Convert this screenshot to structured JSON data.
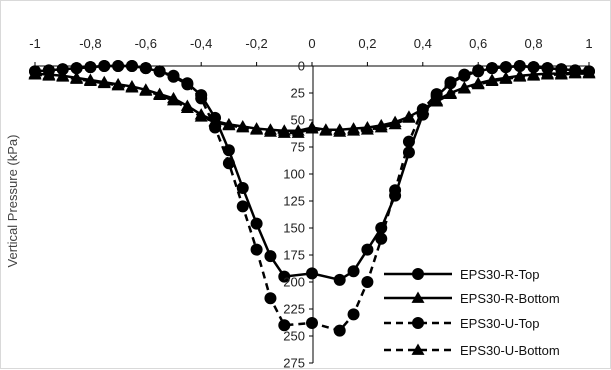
{
  "chart_data": {
    "type": "line",
    "title": "",
    "xlabel": "",
    "ylabel": "Vertical Pressure (kPa)",
    "xlim": [
      -1,
      1
    ],
    "ylim": [
      0,
      275
    ],
    "y_reversed": true,
    "x_axis_position": "top",
    "grid": false,
    "legend_position": "bottom-right",
    "x_ticks": [
      "-1",
      "-0,8",
      "-0,6",
      "-0,4",
      "-0,2",
      "0",
      "0,2",
      "0,4",
      "0,6",
      "0,8",
      "1"
    ],
    "y_ticks": [
      "0",
      "25",
      "50",
      "75",
      "100",
      "125",
      "150",
      "175",
      "200",
      "225",
      "250",
      "275"
    ],
    "series": [
      {
        "name": "EPS30-R-Top",
        "marker": "circle",
        "dash": false,
        "color": "#000000",
        "x": [
          -1,
          -0.95,
          -0.9,
          -0.85,
          -0.8,
          -0.75,
          -0.7,
          -0.65,
          -0.6,
          -0.55,
          -0.5,
          -0.45,
          -0.4,
          -0.35,
          -0.3,
          -0.25,
          -0.2,
          -0.15,
          -0.1,
          0,
          0.1,
          0.15,
          0.2,
          0.25,
          0.3,
          0.35,
          0.4,
          0.45,
          0.5,
          0.55,
          0.6,
          0.65,
          0.7,
          0.75,
          0.8,
          0.85,
          0.9,
          0.95,
          1
        ],
        "y": [
          5,
          4,
          3,
          2,
          1,
          0,
          0,
          0,
          2,
          5,
          9,
          16,
          27,
          48,
          78,
          113,
          146,
          176,
          195,
          192,
          198,
          190,
          170,
          150,
          120,
          80,
          45,
          28,
          16,
          9,
          5,
          2,
          1,
          0,
          1,
          2,
          3,
          4,
          5
        ]
      },
      {
        "name": "EPS30-R-Bottom",
        "marker": "triangle",
        "dash": false,
        "color": "#000000",
        "x": [
          -1,
          -0.95,
          -0.9,
          -0.85,
          -0.8,
          -0.75,
          -0.7,
          -0.65,
          -0.6,
          -0.55,
          -0.5,
          -0.45,
          -0.4,
          -0.35,
          -0.3,
          -0.25,
          -0.2,
          -0.15,
          -0.1,
          -0.05,
          0,
          0.05,
          0.1,
          0.15,
          0.2,
          0.25,
          0.3,
          0.35,
          0.4,
          0.45,
          0.5,
          0.55,
          0.6,
          0.65,
          0.7,
          0.75,
          0.8,
          0.85,
          0.9,
          0.95,
          1
        ],
        "y": [
          7,
          8,
          9,
          11,
          13,
          15,
          17,
          19,
          22,
          26,
          30,
          37,
          45,
          51,
          54,
          56,
          58,
          59,
          60,
          60,
          57,
          59,
          59,
          58,
          57,
          55,
          52,
          47,
          40,
          32,
          25,
          20,
          16,
          13,
          11,
          9,
          8,
          7,
          7,
          6,
          6
        ]
      },
      {
        "name": "EPS30-U-Top",
        "marker": "circle",
        "dash": true,
        "color": "#000000",
        "x": [
          -1,
          -0.95,
          -0.9,
          -0.85,
          -0.8,
          -0.75,
          -0.7,
          -0.65,
          -0.6,
          -0.55,
          -0.5,
          -0.45,
          -0.4,
          -0.35,
          -0.3,
          -0.25,
          -0.2,
          -0.15,
          -0.1,
          0,
          0.1,
          0.15,
          0.2,
          0.25,
          0.3,
          0.35,
          0.4,
          0.45,
          0.5,
          0.55,
          0.6,
          0.65,
          0.7,
          0.75,
          0.8,
          0.85,
          0.9,
          0.95,
          1
        ],
        "y": [
          5,
          4,
          3,
          2,
          1,
          0,
          0,
          0,
          2,
          5,
          10,
          17,
          30,
          57,
          90,
          130,
          170,
          215,
          240,
          238,
          245,
          230,
          200,
          160,
          115,
          70,
          40,
          26,
          15,
          8,
          4,
          2,
          1,
          0,
          1,
          2,
          3,
          4,
          5
        ]
      },
      {
        "name": "EPS30-U-Bottom",
        "marker": "triangle",
        "dash": true,
        "color": "#000000",
        "x": [
          -1,
          -0.95,
          -0.9,
          -0.85,
          -0.8,
          -0.75,
          -0.7,
          -0.65,
          -0.6,
          -0.55,
          -0.5,
          -0.45,
          -0.4,
          -0.35,
          -0.3,
          -0.25,
          -0.2,
          -0.15,
          -0.1,
          -0.05,
          0,
          0.05,
          0.1,
          0.15,
          0.2,
          0.25,
          0.3,
          0.35,
          0.4,
          0.45,
          0.5,
          0.55,
          0.6,
          0.65,
          0.7,
          0.75,
          0.8,
          0.85,
          0.9,
          0.95,
          1
        ],
        "y": [
          8,
          9,
          10,
          12,
          14,
          16,
          18,
          20,
          23,
          27,
          32,
          39,
          47,
          52,
          55,
          57,
          59,
          61,
          62,
          62,
          58,
          60,
          61,
          60,
          59,
          57,
          54,
          48,
          41,
          33,
          26,
          21,
          17,
          14,
          12,
          10,
          9,
          8,
          8,
          7,
          7
        ]
      }
    ]
  }
}
